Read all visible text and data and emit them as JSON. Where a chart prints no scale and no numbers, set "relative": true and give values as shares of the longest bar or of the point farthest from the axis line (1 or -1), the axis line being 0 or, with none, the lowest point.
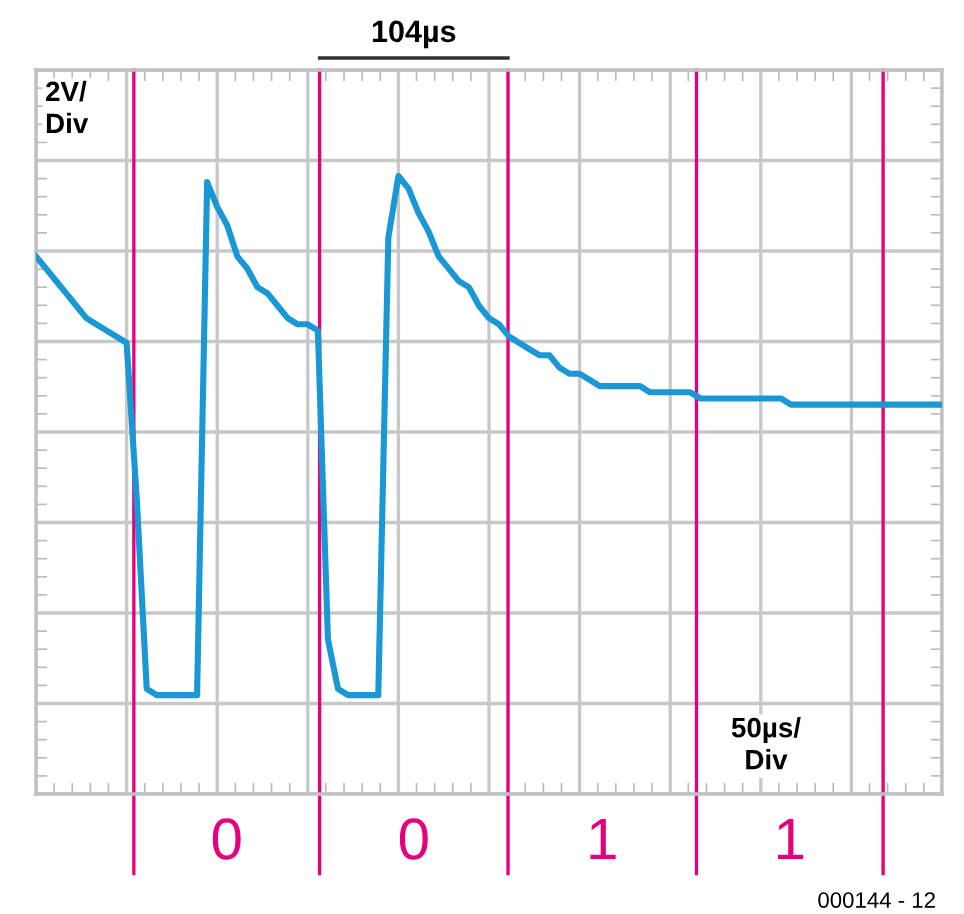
{
  "chart_data": {
    "type": "line",
    "relative": true,
    "grid": true,
    "color": "#1a98d5",
    "categories": [
      null,
      null,
      null,
      null,
      null,
      null,
      null,
      null,
      null,
      null,
      null,
      null,
      null,
      null,
      null,
      null,
      null,
      null,
      null,
      null,
      null,
      null,
      null,
      null,
      null,
      null,
      null,
      null,
      null,
      null,
      null,
      null,
      null,
      null,
      null,
      null,
      null,
      null,
      null,
      null,
      null,
      null,
      null,
      null,
      null,
      null,
      null,
      null,
      null,
      null,
      null,
      null,
      null,
      null,
      null,
      null,
      null,
      null,
      null,
      null,
      null,
      null,
      null,
      null,
      null,
      null,
      null,
      null,
      null,
      null,
      null,
      null,
      null,
      null,
      null,
      null,
      null,
      null,
      null,
      null,
      null,
      null,
      null,
      null,
      null,
      null,
      null,
      null,
      null,
      null,
      null
    ],
    "values": [
      0.87,
      0.85,
      0.83,
      0.81,
      0.79,
      0.77,
      0.76,
      0.75,
      0.74,
      0.73,
      0.48,
      0.17,
      0.16,
      0.16,
      0.16,
      0.16,
      0.16,
      0.99,
      0.95,
      0.92,
      0.87,
      0.85,
      0.82,
      0.81,
      0.79,
      0.77,
      0.76,
      0.76,
      0.75,
      0.25,
      0.17,
      0.16,
      0.16,
      0.16,
      0.16,
      0.9,
      1,
      0.98,
      0.94,
      0.91,
      0.87,
      0.85,
      0.83,
      0.82,
      0.79,
      0.77,
      0.76,
      0.74,
      0.73,
      0.72,
      0.71,
      0.71,
      0.69,
      0.68,
      0.68,
      0.67,
      0.66,
      0.66,
      0.66,
      0.66,
      0.66,
      0.65,
      0.65,
      0.65,
      0.65,
      0.65,
      0.64,
      0.64,
      0.64,
      0.64,
      0.64,
      0.64,
      0.64,
      0.64,
      0.64,
      0.63,
      0.63,
      0.63,
      0.63,
      0.63,
      0.63,
      0.63,
      0.63,
      0.63,
      0.63,
      0.63,
      0.63,
      0.63,
      0.63,
      0.63,
      0.63
    ],
    "annotations": [
      "104µs",
      "2V/\nDiv",
      "50µs/\nDiv",
      "0",
      "0",
      "1",
      "1",
      "000144 - 12"
    ]
  }
}
